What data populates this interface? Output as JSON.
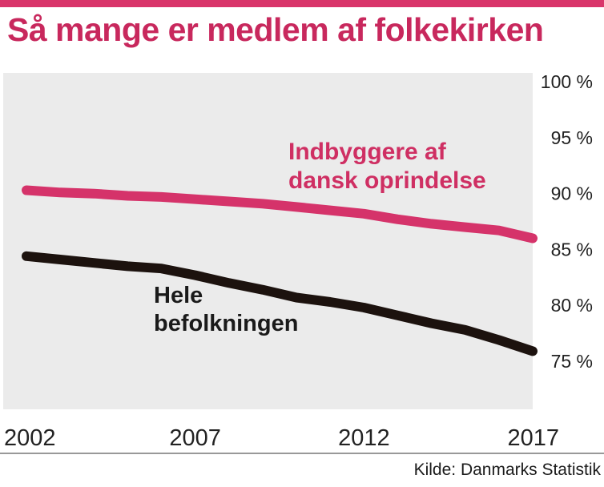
{
  "title": "Så mange er medlem af folkekirken",
  "source": "Kilde: Danmarks Statistik",
  "colors": {
    "accent": "#d9356a",
    "series_pink": "#d5336a",
    "series_black": "#1c120e"
  },
  "chart_data": {
    "type": "line",
    "title": "Så mange er medlem af folkekirken",
    "xlabel": "",
    "ylabel": "",
    "x_ticks": [
      "2002",
      "2007",
      "2012",
      "2017"
    ],
    "y_ticks": [
      "75 %",
      "80 %",
      "85 %",
      "90 %",
      "95 %",
      "100 %"
    ],
    "xlim": [
      2002,
      2017
    ],
    "ylim": [
      70.7,
      100.8
    ],
    "grid": false,
    "legend": "inline",
    "series": [
      {
        "name": "Indbyggere af\ndansk oprindelse",
        "color": "#d5336a",
        "x": [
          2002,
          2003,
          2004,
          2005,
          2006,
          2007,
          2008,
          2009,
          2010,
          2011,
          2012,
          2013,
          2014,
          2015,
          2016,
          2017
        ],
        "values": [
          90.3,
          90.1,
          90.0,
          89.8,
          89.7,
          89.5,
          89.3,
          89.1,
          88.8,
          88.5,
          88.2,
          87.7,
          87.3,
          87.0,
          86.7,
          86.0
        ]
      },
      {
        "name": "Hele\nbefolkningen",
        "color": "#1c120e",
        "x": [
          2002,
          2003,
          2004,
          2005,
          2006,
          2007,
          2008,
          2009,
          2010,
          2011,
          2012,
          2013,
          2014,
          2015,
          2016,
          2017
        ],
        "values": [
          84.4,
          84.1,
          83.8,
          83.5,
          83.3,
          82.7,
          82.0,
          81.4,
          80.7,
          80.3,
          79.8,
          79.1,
          78.4,
          77.8,
          76.9,
          75.9
        ]
      }
    ]
  }
}
